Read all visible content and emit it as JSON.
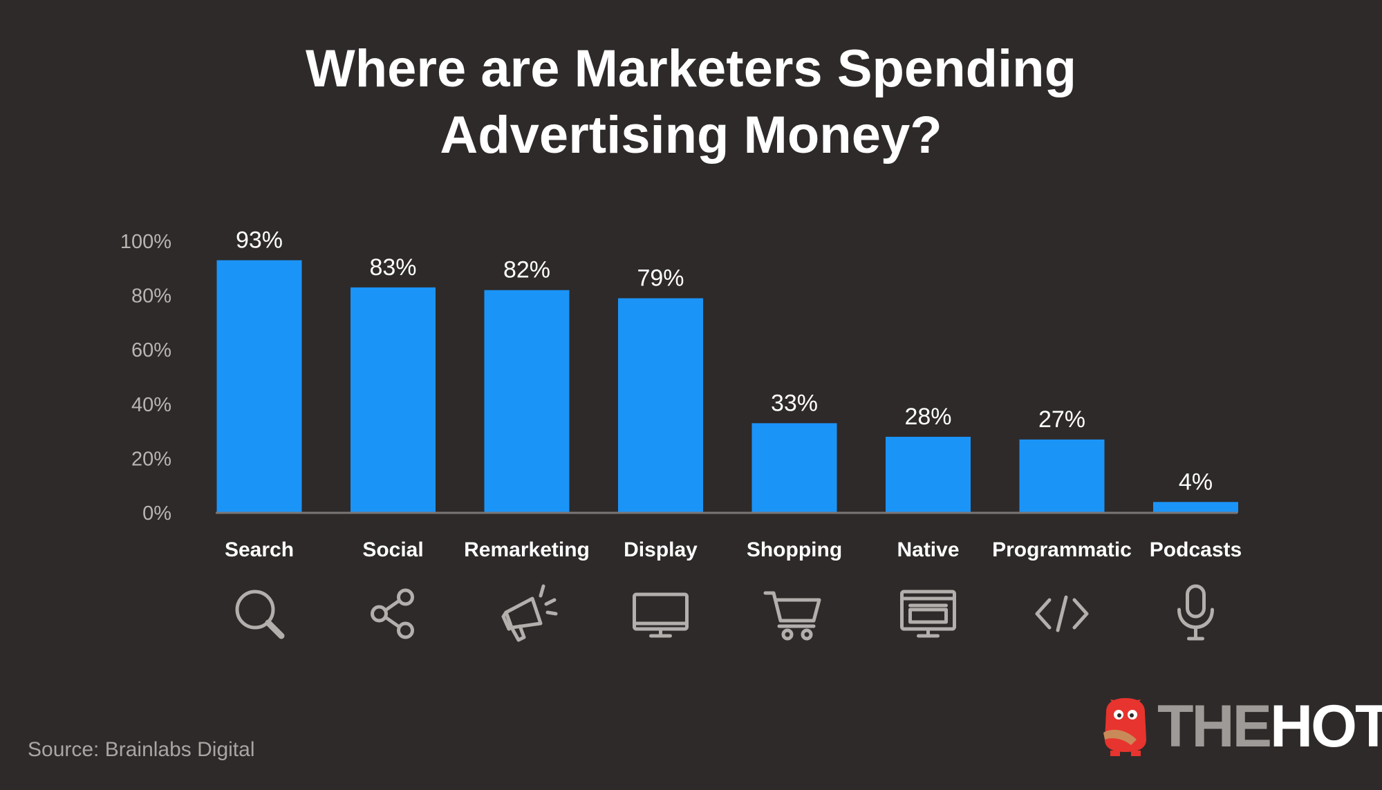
{
  "title": {
    "line1": "Where are Marketers Spending",
    "line2": "Advertising Money?"
  },
  "source": "Source: Brainlabs Digital",
  "logo": {
    "part1": "THE",
    "part2": "HOTH"
  },
  "colors": {
    "background": "#2e2a29",
    "bar": "#1b94f8",
    "axis": "#7a7675"
  },
  "icons": [
    "search-icon",
    "share-icon",
    "megaphone-icon",
    "monitor-icon",
    "shopping-cart-icon",
    "browser-monitor-icon",
    "code-icon",
    "microphone-icon"
  ],
  "chart_data": {
    "type": "bar",
    "title": "Where are Marketers Spending Advertising Money?",
    "categories": [
      "Search",
      "Social",
      "Remarketing",
      "Display",
      "Shopping",
      "Native",
      "Programmatic",
      "Podcasts"
    ],
    "values": [
      93,
      83,
      82,
      79,
      33,
      28,
      27,
      4
    ],
    "value_labels": [
      "93%",
      "83%",
      "82%",
      "79%",
      "33%",
      "28%",
      "27%",
      "4%"
    ],
    "yticks": [
      "0%",
      "20%",
      "40%",
      "60%",
      "80%",
      "100%"
    ],
    "ylim": [
      0,
      100
    ],
    "grid": false,
    "legend": "none"
  }
}
